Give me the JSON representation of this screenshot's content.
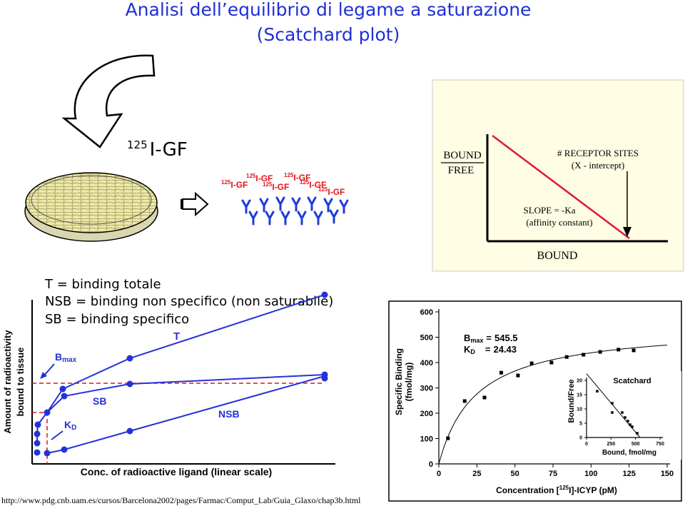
{
  "title": [
    "Analisi dell’equilibrio di legame a saturazione",
    "(Scatchard plot)"
  ],
  "ligand": {
    "mass": "125",
    "name": "I-GF"
  },
  "dish_labels": [
    {
      "mass": "125",
      "name": "I-GF"
    },
    {
      "mass": "125",
      "name": "I-GF"
    },
    {
      "mass": "125",
      "name": "I-GF"
    },
    {
      "mass": "125",
      "name": "I-GF"
    },
    {
      "mass": "125",
      "name": "I-GF"
    },
    {
      "mass": "125",
      "name": "I-GF"
    }
  ],
  "scatchard_schematic": {
    "y_label_top": "BOUND",
    "y_label_bottom": "FREE",
    "sites": "# RECEPTOR SITES",
    "sites_note": "(X - intercept)",
    "slope": "SLOPE = -Ka",
    "slope_note": "(affinity constant)",
    "x_label": "BOUND"
  },
  "legend": [
    "T = binding totale",
    "NSB = binding non specifico (non saturabile)",
    "SB = binding specifico"
  ],
  "binding_diagram": {
    "y_label": [
      "Amount of radioactivity",
      "bound to tissue"
    ],
    "x_label": "Conc. of radioactive ligand (linear scale)",
    "curve_labels": {
      "t": "T",
      "sb": "SB",
      "nsb": "NSB"
    },
    "bmax": {
      "symbol": "B",
      "subscript": "max"
    },
    "kd": {
      "symbol": "K",
      "subscript": "D"
    }
  },
  "chart_data": [
    {
      "type": "scatter",
      "y_label": [
        "Specific Binding",
        "(fmol/mg)"
      ],
      "x_label": {
        "prefix": "Concentration [",
        "mass": "125",
        "suffix": "I]-ICYP (pM)"
      },
      "x": [
        6,
        17,
        30,
        41,
        52,
        61,
        74,
        84,
        95,
        106,
        118,
        128
      ],
      "values": [
        101,
        248,
        262,
        360,
        349,
        397,
        400,
        422,
        431,
        442,
        451,
        448
      ],
      "color": "#000000",
      "xlim": [
        0,
        150
      ],
      "ylim": [
        0,
        600
      ],
      "xticks": [
        0,
        25,
        50,
        75,
        100,
        125,
        150
      ],
      "yticks": [
        0,
        100,
        200,
        300,
        400,
        500,
        600
      ],
      "bmax": {
        "symbol": "B",
        "subscript": "max",
        "relation": "=",
        "value": 545.5
      },
      "kd": {
        "symbol": "K",
        "subscript": "D",
        "relation": "=",
        "value": 24.43
      }
    },
    {
      "type": "scatter",
      "title": "Scatchard",
      "y_label": "Bound/Free",
      "x_label": "Bound, fmol/mg",
      "x": [
        109,
        262,
        262,
        364,
        393,
        422,
        444,
        466,
        517
      ],
      "values": [
        16.2,
        12,
        8.75,
        8.75,
        7,
        5.75,
        4.5,
        3.75,
        1.5
      ],
      "color": "#000000",
      "xlim": [
        0,
        750
      ],
      "ylim": [
        0,
        20
      ],
      "xticks": [
        0,
        250,
        500,
        750
      ],
      "yticks": [
        0,
        5,
        10,
        15,
        20
      ]
    }
  ],
  "source": "http://www.pdg.cnb.uam.es/cursos/Barcelona2002/pages/Farmac/Comput_Lab/Guia_Glaxo/chap3b.html"
}
